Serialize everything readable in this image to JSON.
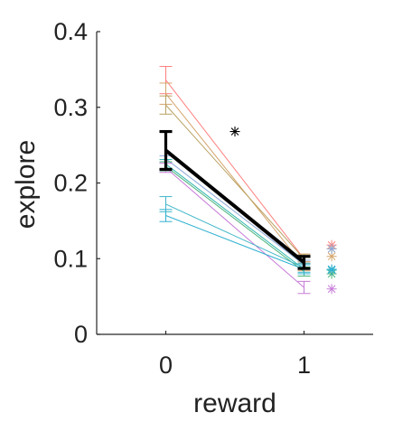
{
  "chart_data": {
    "type": "line",
    "xlabel": "reward",
    "ylabel": "explore",
    "xlim": [
      -0.5,
      1.5
    ],
    "ylim": [
      0,
      0.4
    ],
    "x_ticks": [
      0,
      1
    ],
    "x_tick_labels": [
      "0",
      "1"
    ],
    "y_ticks": [
      0,
      0.1,
      0.2,
      0.3,
      0.4
    ],
    "y_tick_labels": [
      "0",
      "0.1",
      "0.2",
      "0.3",
      "0.4"
    ],
    "box": "left-bottom",
    "series": [
      {
        "color": "#ff7f7f",
        "values": [
          0.336,
          0.1
        ],
        "err0": 0.018,
        "err1": 0.006,
        "extra": 0.118
      },
      {
        "color": "#d4a56c",
        "values": [
          0.318,
          0.09
        ],
        "err0": 0.014,
        "err1": 0.006,
        "extra": 0.103
      },
      {
        "color": "#b8a060",
        "values": [
          0.303,
          0.1
        ],
        "err0": 0.012,
        "err1": 0.006,
        "extra": 0.113
      },
      {
        "color": "#8da8d8",
        "values": [
          0.232,
          0.092
        ],
        "err0": 0.004,
        "err1": 0.006,
        "extra": 0.113
      },
      {
        "color": "#30b7b0",
        "values": [
          0.225,
          0.086
        ],
        "err0": 0.006,
        "err1": 0.006,
        "extra": 0.085
      },
      {
        "color": "#4cb37a",
        "values": [
          0.222,
          0.083
        ],
        "err0": 0.006,
        "err1": 0.006,
        "extra": 0.08
      },
      {
        "color": "#c77bd8",
        "values": [
          0.22,
          0.062
        ],
        "err0": 0.006,
        "err1": 0.008,
        "extra": 0.06
      },
      {
        "color": "#3fb6c8",
        "values": [
          0.172,
          0.088
        ],
        "err0": 0.01,
        "err1": 0.006,
        "extra": 0.085
      },
      {
        "color": "#2fb0d0",
        "values": [
          0.157,
          0.086
        ],
        "err0": 0.008,
        "err1": 0.006,
        "extra": 0.086
      }
    ],
    "mean": {
      "color": "#000000",
      "values": [
        0.243,
        0.095
      ],
      "err0": 0.025,
      "err1": 0.008
    },
    "significance": {
      "x": 0.5,
      "y": 0.268,
      "symbol": "*"
    }
  }
}
